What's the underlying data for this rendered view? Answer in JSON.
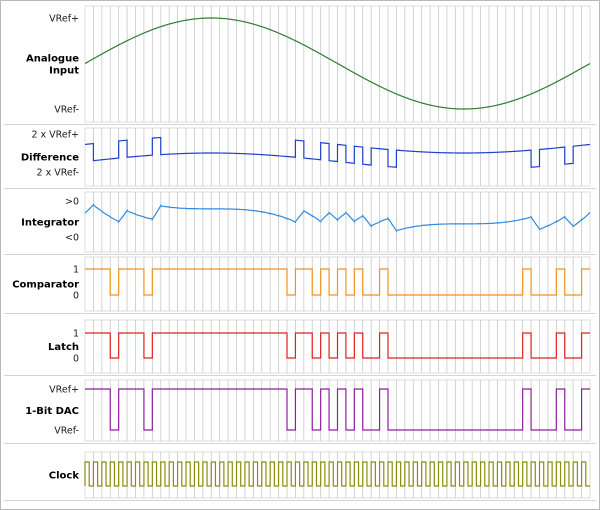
{
  "clock_periods": 60,
  "grid_color": "#c8c8c8",
  "panel_color": "#dcdcdc",
  "panels": [
    {
      "title_lines": [
        "Analogue",
        "Input"
      ],
      "color": "#2e7d32",
      "icon": "sine-waveform",
      "levels": [
        {
          "label": "VRef+",
          "value": 1.0
        },
        {
          "label": "VRef-",
          "value": -1.0
        }
      ]
    },
    {
      "title_lines": [
        "Difference"
      ],
      "color": "#1f3fcc",
      "icon": "difference-waveform",
      "levels": [
        {
          "label": "2 x VRef+",
          "value": 1.0
        },
        {
          "label": "2 x VRef-",
          "value": -1.0
        }
      ]
    },
    {
      "title_lines": [
        "Integrator"
      ],
      "color": "#2f8be0",
      "icon": "integrator-waveform",
      "levels": [
        {
          "label": ">0",
          "value": 1.0
        },
        {
          "label": "<0",
          "value": -1.0
        }
      ]
    },
    {
      "title_lines": [
        "Comparator"
      ],
      "color": "#f0921e",
      "icon": "comparator-waveform",
      "levels": [
        {
          "label": "1",
          "value": 1.0
        },
        {
          "label": "0",
          "value": -1.0
        }
      ]
    },
    {
      "title_lines": [
        "Latch"
      ],
      "color": "#e02020",
      "icon": "latch-waveform",
      "levels": [
        {
          "label": "1",
          "value": 1.0
        },
        {
          "label": "0",
          "value": -1.0
        }
      ]
    },
    {
      "title_lines": [
        "1-Bit DAC"
      ],
      "color": "#8e1f9e",
      "icon": "dac-waveform",
      "levels": [
        {
          "label": "VRef+",
          "value": 1.0
        },
        {
          "label": "VRef-",
          "value": -1.0
        }
      ]
    },
    {
      "title_lines": [
        "Clock"
      ],
      "color": "#8c8c10",
      "icon": "clock-waveform",
      "levels": []
    }
  ]
}
